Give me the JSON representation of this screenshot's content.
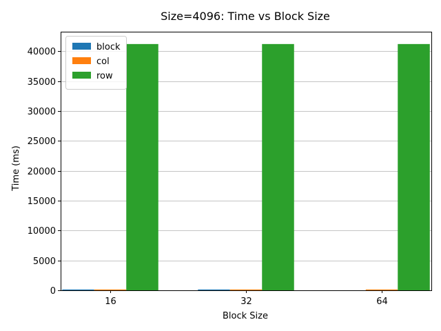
{
  "chart_data": {
    "type": "bar",
    "title": "Size=4096: Time vs Block Size",
    "xlabel": "Block Size",
    "ylabel": "Time (ms)",
    "categories": [
      "16",
      "32",
      "64"
    ],
    "series": [
      {
        "name": "block",
        "color": "#1f77b4",
        "values": [
          110,
          100,
          0
        ]
      },
      {
        "name": "col",
        "color": "#ff7f0e",
        "values": [
          130,
          120,
          130
        ]
      },
      {
        "name": "row",
        "color": "#2ca02c",
        "values": [
          41200,
          41200,
          41200
        ]
      }
    ],
    "ylim": [
      0,
      43260
    ],
    "yticks": [
      0,
      5000,
      10000,
      15000,
      20000,
      25000,
      30000,
      35000,
      40000
    ],
    "ytick_labels": [
      "0",
      "5000",
      "10000",
      "15000",
      "20000",
      "25000",
      "30000",
      "35000",
      "40000"
    ],
    "grid": "y",
    "legend_position": "top-left"
  }
}
